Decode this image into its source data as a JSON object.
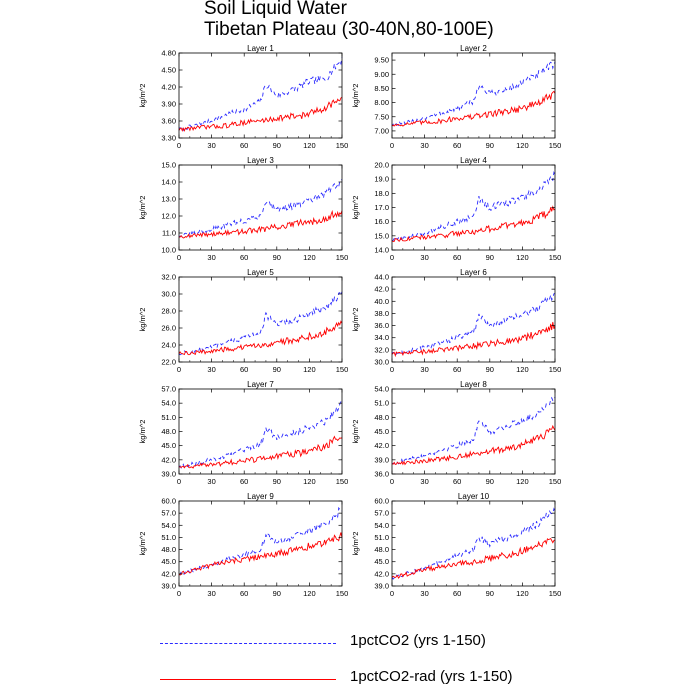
{
  "title": {
    "line1": "Soil Liquid Water",
    "line2": "Tibetan Plateau (30-40N,80-100E)"
  },
  "legend": {
    "items": [
      {
        "label": "1pctCO2 (yrs 1-150)",
        "color": "#2b2bff",
        "style": "dashed"
      },
      {
        "label": "1pctCO2-rad (yrs 1-150)",
        "color": "#ff0000",
        "style": "solid"
      }
    ]
  },
  "chart_data": [
    {
      "type": "line",
      "title": "Layer 1",
      "ylabel": "kg/m^2",
      "xlim": [
        0,
        150
      ],
      "xticks": [
        0,
        30,
        60,
        90,
        120,
        150
      ],
      "ylim": [
        3.3,
        4.8
      ],
      "yticks": [
        "3.30",
        "3.60",
        "3.90",
        "4.20",
        "4.50",
        "4.80"
      ],
      "series": [
        {
          "name": "1pctCO2 (yrs 1-150)",
          "color": "#2b2bff",
          "dash": "4,3",
          "x": [
            0,
            15,
            30,
            45,
            60,
            75,
            80,
            90,
            105,
            120,
            135,
            150
          ],
          "values": [
            3.45,
            3.52,
            3.6,
            3.72,
            3.8,
            3.95,
            4.25,
            4.05,
            4.15,
            4.3,
            4.35,
            4.7
          ]
        },
        {
          "name": "1pctCO2-rad (yrs 1-150)",
          "color": "#ff0000",
          "dash": "",
          "x": [
            0,
            15,
            30,
            45,
            60,
            75,
            90,
            105,
            120,
            135,
            150
          ],
          "values": [
            3.45,
            3.48,
            3.5,
            3.52,
            3.58,
            3.6,
            3.65,
            3.68,
            3.72,
            3.85,
            4.0
          ]
        }
      ]
    },
    {
      "type": "line",
      "title": "Layer 2",
      "ylabel": "kg/m^2",
      "xlim": [
        0,
        150
      ],
      "xticks": [
        0,
        30,
        60,
        90,
        120,
        150
      ],
      "ylim": [
        6.75,
        9.75
      ],
      "yticks": [
        "7.00",
        "7.50",
        "8.00",
        "8.50",
        "9.00",
        "9.50"
      ],
      "series": [
        {
          "name": "1pctCO2 (yrs 1-150)",
          "color": "#2b2bff",
          "dash": "4,3",
          "x": [
            0,
            15,
            30,
            45,
            60,
            75,
            80,
            90,
            105,
            120,
            135,
            150
          ],
          "values": [
            7.2,
            7.3,
            7.45,
            7.6,
            7.8,
            8.05,
            8.6,
            8.3,
            8.45,
            8.7,
            9.0,
            9.4
          ]
        },
        {
          "name": "1pctCO2-rad (yrs 1-150)",
          "color": "#ff0000",
          "dash": "",
          "x": [
            0,
            15,
            30,
            45,
            60,
            75,
            90,
            105,
            120,
            135,
            150
          ],
          "values": [
            7.2,
            7.25,
            7.3,
            7.35,
            7.45,
            7.5,
            7.6,
            7.7,
            7.8,
            8.0,
            8.3
          ]
        }
      ]
    },
    {
      "type": "line",
      "title": "Layer 3",
      "ylabel": "kg/m^2",
      "xlim": [
        0,
        150
      ],
      "xticks": [
        0,
        30,
        60,
        90,
        120,
        150
      ],
      "ylim": [
        10.0,
        15.0
      ],
      "yticks": [
        "10.0",
        "11.0",
        "12.0",
        "13.0",
        "14.0",
        "15.0"
      ],
      "series": [
        {
          "name": "1pctCO2 (yrs 1-150)",
          "color": "#2b2bff",
          "dash": "4,3",
          "x": [
            0,
            15,
            30,
            45,
            60,
            75,
            80,
            90,
            105,
            120,
            135,
            150
          ],
          "values": [
            10.8,
            11.0,
            11.2,
            11.5,
            11.7,
            12.0,
            12.9,
            12.4,
            12.6,
            12.9,
            13.3,
            14.1
          ]
        },
        {
          "name": "1pctCO2-rad (yrs 1-150)",
          "color": "#ff0000",
          "dash": "",
          "x": [
            0,
            15,
            30,
            45,
            60,
            75,
            90,
            105,
            120,
            135,
            150
          ],
          "values": [
            10.8,
            10.85,
            10.95,
            11.0,
            11.1,
            11.2,
            11.35,
            11.5,
            11.65,
            11.9,
            12.3
          ]
        }
      ]
    },
    {
      "type": "line",
      "title": "Layer 4",
      "ylabel": "kg/m^2",
      "xlim": [
        0,
        150
      ],
      "xticks": [
        0,
        30,
        60,
        90,
        120,
        150
      ],
      "ylim": [
        14.0,
        20.0
      ],
      "yticks": [
        "14.0",
        "15.0",
        "16.0",
        "17.0",
        "18.0",
        "19.0",
        "20.0"
      ],
      "series": [
        {
          "name": "1pctCO2 (yrs 1-150)",
          "color": "#2b2bff",
          "dash": "4,3",
          "x": [
            0,
            15,
            30,
            45,
            60,
            75,
            80,
            90,
            105,
            120,
            135,
            150
          ],
          "values": [
            14.7,
            14.9,
            15.2,
            15.6,
            16.0,
            16.4,
            17.6,
            17.0,
            17.3,
            17.7,
            18.2,
            19.3
          ]
        },
        {
          "name": "1pctCO2-rad (yrs 1-150)",
          "color": "#ff0000",
          "dash": "",
          "x": [
            0,
            15,
            30,
            45,
            60,
            75,
            90,
            105,
            120,
            135,
            150
          ],
          "values": [
            14.7,
            14.8,
            14.9,
            15.0,
            15.2,
            15.3,
            15.5,
            15.7,
            15.9,
            16.3,
            16.9
          ]
        }
      ]
    },
    {
      "type": "line",
      "title": "Layer 5",
      "ylabel": "kg/m^2",
      "xlim": [
        0,
        150
      ],
      "xticks": [
        0,
        30,
        60,
        90,
        120,
        150
      ],
      "ylim": [
        22.0,
        32.0
      ],
      "yticks": [
        "22.0",
        "24.0",
        "26.0",
        "28.0",
        "30.0",
        "32.0"
      ],
      "series": [
        {
          "name": "1pctCO2 (yrs 1-150)",
          "color": "#2b2bff",
          "dash": "4,3",
          "x": [
            0,
            15,
            30,
            45,
            60,
            75,
            80,
            90,
            105,
            120,
            135,
            150
          ],
          "values": [
            23.0,
            23.3,
            23.7,
            24.3,
            24.9,
            25.5,
            27.5,
            26.4,
            26.9,
            27.6,
            28.4,
            30.3
          ]
        },
        {
          "name": "1pctCO2-rad (yrs 1-150)",
          "color": "#ff0000",
          "dash": "",
          "x": [
            0,
            15,
            30,
            45,
            60,
            75,
            90,
            105,
            120,
            135,
            150
          ],
          "values": [
            23.0,
            23.1,
            23.3,
            23.5,
            23.7,
            24.0,
            24.3,
            24.6,
            25.0,
            25.6,
            26.6
          ]
        }
      ]
    },
    {
      "type": "line",
      "title": "Layer 6",
      "ylabel": "kg/m^2",
      "xlim": [
        0,
        150
      ],
      "xticks": [
        0,
        30,
        60,
        90,
        120,
        150
      ],
      "ylim": [
        30.0,
        44.0
      ],
      "yticks": [
        "30.0",
        "32.0",
        "34.0",
        "36.0",
        "38.0",
        "40.0",
        "42.0",
        "44.0"
      ],
      "series": [
        {
          "name": "1pctCO2 (yrs 1-150)",
          "color": "#2b2bff",
          "dash": "4,3",
          "x": [
            0,
            15,
            30,
            45,
            60,
            75,
            80,
            90,
            105,
            120,
            135,
            150
          ],
          "values": [
            31.3,
            31.8,
            32.4,
            33.2,
            34.0,
            34.9,
            37.6,
            36.1,
            36.8,
            37.8,
            38.9,
            41.4
          ]
        },
        {
          "name": "1pctCO2-rad (yrs 1-150)",
          "color": "#ff0000",
          "dash": "",
          "x": [
            0,
            15,
            30,
            45,
            60,
            75,
            90,
            105,
            120,
            135,
            150
          ],
          "values": [
            31.3,
            31.5,
            31.7,
            32.0,
            32.3,
            32.6,
            33.0,
            33.4,
            33.9,
            34.7,
            36.2
          ]
        }
      ]
    },
    {
      "type": "line",
      "title": "Layer 7",
      "ylabel": "kg/m^2",
      "xlim": [
        0,
        150
      ],
      "xticks": [
        0,
        30,
        60,
        90,
        120,
        150
      ],
      "ylim": [
        39.0,
        57.0
      ],
      "yticks": [
        "39.0",
        "42.0",
        "45.0",
        "48.0",
        "51.0",
        "54.0",
        "57.0"
      ],
      "series": [
        {
          "name": "1pctCO2 (yrs 1-150)",
          "color": "#2b2bff",
          "dash": "4,3",
          "x": [
            0,
            15,
            30,
            45,
            60,
            75,
            80,
            90,
            105,
            120,
            135,
            150
          ],
          "values": [
            40.5,
            41.2,
            42.0,
            43.0,
            44.0,
            45.2,
            48.5,
            46.7,
            47.6,
            48.8,
            50.3,
            54.0
          ]
        },
        {
          "name": "1pctCO2-rad (yrs 1-150)",
          "color": "#ff0000",
          "dash": "",
          "x": [
            0,
            15,
            30,
            45,
            60,
            75,
            90,
            105,
            120,
            135,
            150
          ],
          "values": [
            40.5,
            40.7,
            41.0,
            41.4,
            41.8,
            42.2,
            42.7,
            43.2,
            43.9,
            45.0,
            47.0
          ]
        }
      ]
    },
    {
      "type": "line",
      "title": "Layer 8",
      "ylabel": "kg/m^2",
      "xlim": [
        0,
        150
      ],
      "xticks": [
        0,
        30,
        60,
        90,
        120,
        150
      ],
      "ylim": [
        36.0,
        54.0
      ],
      "yticks": [
        "36.0",
        "39.0",
        "42.0",
        "45.0",
        "48.0",
        "51.0",
        "54.0"
      ],
      "series": [
        {
          "name": "1pctCO2 (yrs 1-150)",
          "color": "#2b2bff",
          "dash": "4,3",
          "x": [
            0,
            15,
            30,
            45,
            60,
            75,
            80,
            90,
            105,
            120,
            135,
            150
          ],
          "values": [
            38.2,
            39.0,
            39.9,
            41.0,
            42.1,
            43.4,
            47.0,
            45.0,
            46.0,
            47.3,
            49.0,
            52.6
          ]
        },
        {
          "name": "1pctCO2-rad (yrs 1-150)",
          "color": "#ff0000",
          "dash": "",
          "x": [
            0,
            15,
            30,
            45,
            60,
            75,
            90,
            105,
            120,
            135,
            150
          ],
          "values": [
            38.2,
            38.5,
            38.8,
            39.2,
            39.7,
            40.2,
            40.8,
            41.4,
            42.2,
            43.5,
            45.6
          ]
        }
      ]
    },
    {
      "type": "line",
      "title": "Layer 9",
      "ylabel": "kg/m^2",
      "xlim": [
        0,
        150
      ],
      "xticks": [
        0,
        30,
        60,
        90,
        120,
        150
      ],
      "ylim": [
        39.0,
        60.0
      ],
      "yticks": [
        "39.0",
        "42.0",
        "45.0",
        "48.0",
        "51.0",
        "54.0",
        "57.0",
        "60.0"
      ],
      "series": [
        {
          "name": "1pctCO2 (yrs 1-150)",
          "color": "#2b2bff",
          "dash": "4,3",
          "x": [
            0,
            15,
            30,
            45,
            60,
            75,
            80,
            90,
            105,
            120,
            135,
            150
          ],
          "values": [
            42.0,
            43.0,
            44.2,
            45.5,
            46.8,
            48.2,
            51.5,
            49.8,
            51.0,
            52.5,
            54.5,
            58.0
          ]
        },
        {
          "name": "1pctCO2-rad (yrs 1-150)",
          "color": "#ff0000",
          "dash": "",
          "x": [
            0,
            15,
            30,
            45,
            60,
            75,
            90,
            105,
            120,
            135,
            150
          ],
          "values": [
            42.0,
            43.0,
            44.2,
            45.0,
            45.6,
            46.2,
            47.0,
            47.8,
            48.8,
            50.0,
            51.5
          ]
        }
      ]
    },
    {
      "type": "line",
      "title": "Layer 10",
      "ylabel": "kg/m^2",
      "xlim": [
        0,
        150
      ],
      "xticks": [
        0,
        30,
        60,
        90,
        120,
        150
      ],
      "ylim": [
        39.0,
        60.0
      ],
      "yticks": [
        "39.0",
        "42.0",
        "45.0",
        "48.0",
        "51.0",
        "54.0",
        "57.0",
        "60.0"
      ],
      "series": [
        {
          "name": "1pctCO2 (yrs 1-150)",
          "color": "#2b2bff",
          "dash": "4,3",
          "x": [
            0,
            15,
            30,
            45,
            60,
            75,
            80,
            90,
            105,
            120,
            135,
            150
          ],
          "values": [
            41.0,
            42.2,
            43.5,
            45.0,
            46.5,
            48.0,
            51.0,
            49.5,
            50.8,
            52.5,
            54.5,
            58.0
          ]
        },
        {
          "name": "1pctCO2-rad (yrs 1-150)",
          "color": "#ff0000",
          "dash": "",
          "x": [
            0,
            15,
            30,
            45,
            60,
            75,
            90,
            105,
            120,
            135,
            150
          ],
          "values": [
            41.0,
            42.0,
            43.0,
            43.8,
            44.4,
            45.0,
            45.8,
            46.6,
            47.6,
            49.0,
            51.0
          ]
        }
      ]
    }
  ]
}
